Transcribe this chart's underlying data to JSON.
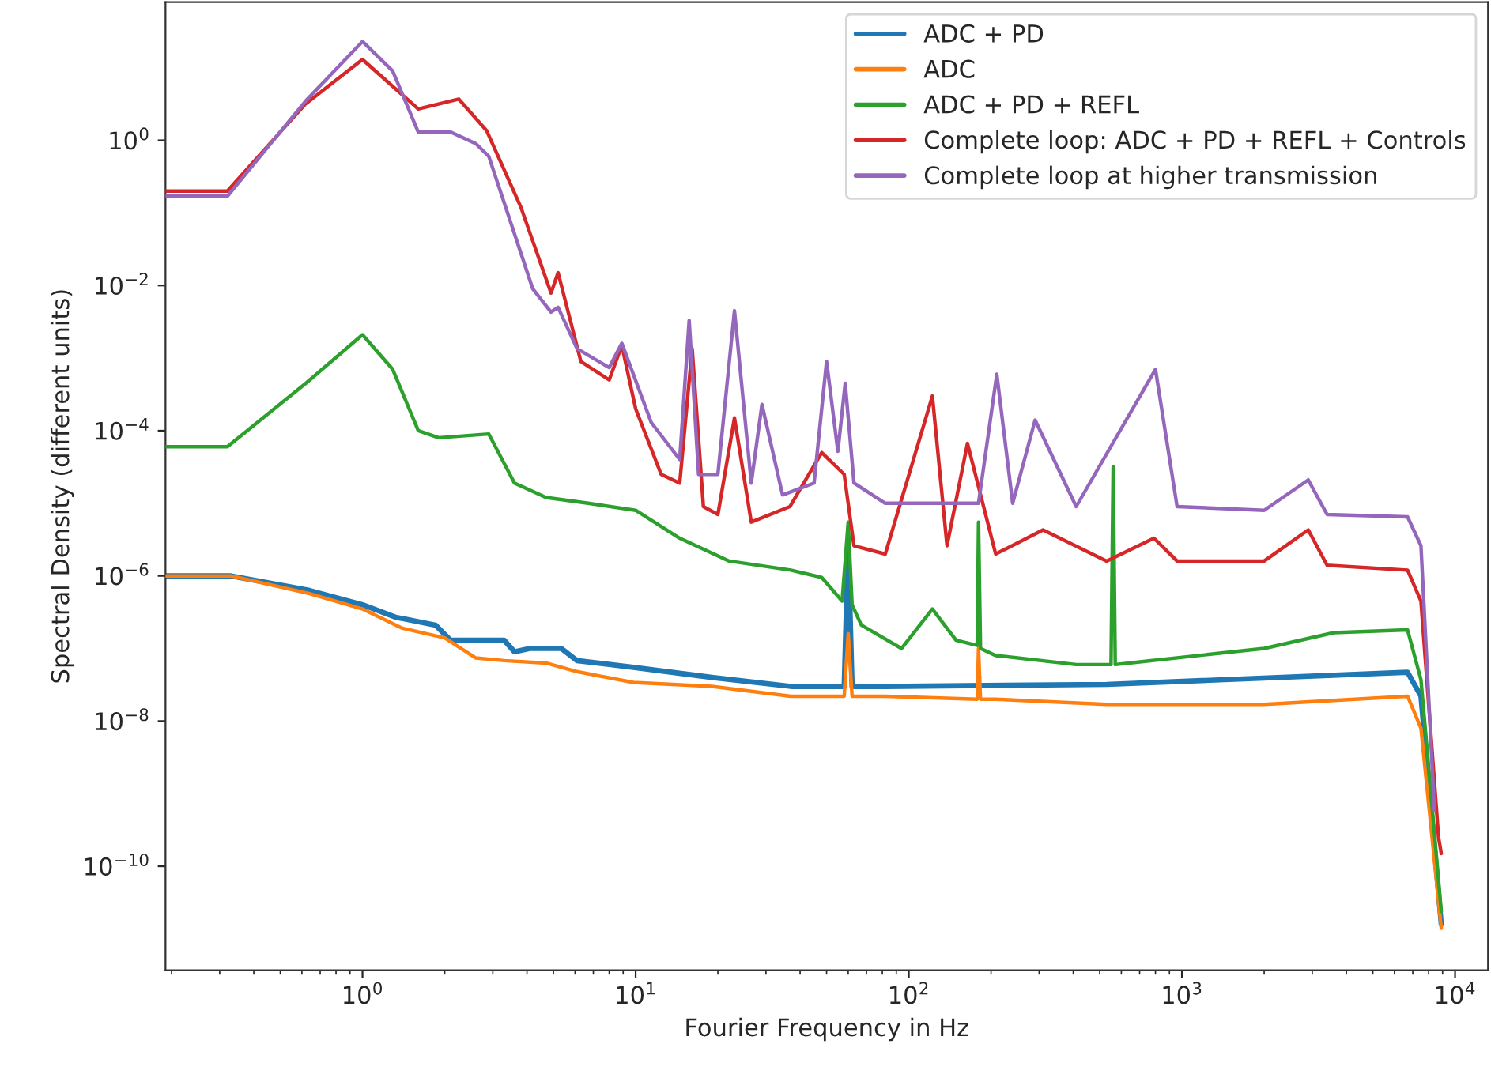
{
  "chart_data": {
    "type": "line",
    "xlabel": "Fourier Frequency in Hz",
    "ylabel": "Spectral Density (different units)",
    "log": "xy",
    "grid": false,
    "legend": "top right",
    "marker": "none",
    "line_style": "solid",
    "xlim": [
      0.19,
      13200
    ],
    "ylim": [
      3.7e-12,
      80
    ],
    "xticks": [
      {
        "value": 1,
        "label": "10$^{0}$"
      },
      {
        "value": 10,
        "label": "10$^{1}$"
      },
      {
        "value": 100,
        "label": "10$^{2}$"
      },
      {
        "value": 1000,
        "label": "10$^{3}$"
      },
      {
        "value": 10000,
        "label": "10$^{4}$"
      }
    ],
    "yticks": [
      {
        "value": 1e-10,
        "label": "10$^{−10}$"
      },
      {
        "value": 1e-08,
        "label": "10$^{−8}$"
      },
      {
        "value": 1e-06,
        "label": "10$^{−6}$"
      },
      {
        "value": 0.0001,
        "label": "10$^{−4}$"
      },
      {
        "value": 0.01,
        "label": "10$^{−2}$"
      },
      {
        "value": 1,
        "label": "10$^{0}$"
      }
    ],
    "series": [
      {
        "name": "ADC + PD",
        "color": "#1f77b4",
        "x": [
          0.19,
          0.33,
          0.64,
          1.0,
          1.32,
          1.85,
          2.1,
          3.3,
          3.6,
          4.1,
          5.35,
          6.1,
          9.8,
          19,
          37,
          58,
          60,
          62,
          82,
          530,
          6700,
          7500,
          8900
        ],
        "values": [
          1e-06,
          1e-06,
          6.3e-07,
          4e-07,
          2.7e-07,
          2.1e-07,
          1.3e-07,
          1.3e-07,
          9e-08,
          1e-07,
          1e-07,
          6.8e-08,
          5.5e-08,
          4e-08,
          3e-08,
          3e-08,
          2.7e-06,
          3e-08,
          3e-08,
          3.2e-08,
          4.7e-08,
          2.2e-08,
          1.6e-11
        ]
      },
      {
        "name": "ADC",
        "color": "#ff7f0e",
        "x": [
          0.19,
          0.33,
          0.64,
          1.0,
          1.4,
          2.0,
          2.6,
          3.3,
          4.7,
          6.1,
          9.8,
          19,
          37,
          58,
          60,
          62,
          82,
          178,
          180,
          183,
          208,
          530,
          2000,
          6700,
          7500,
          8900
        ],
        "values": [
          1e-06,
          1e-06,
          5.7e-07,
          3.5e-07,
          1.9e-07,
          1.4e-07,
          7.4e-08,
          6.8e-08,
          6.3e-08,
          4.8e-08,
          3.4e-08,
          3e-08,
          2.2e-08,
          2.2e-08,
          1.6e-07,
          2.2e-08,
          2.2e-08,
          2e-08,
          1e-07,
          2e-08,
          2e-08,
          1.7e-08,
          1.7e-08,
          2.2e-08,
          8e-09,
          1.4e-11
        ]
      },
      {
        "name": "ADC + PD + REFL",
        "color": "#2ca02c",
        "x": [
          0.19,
          0.32,
          0.62,
          1.0,
          1.29,
          1.6,
          1.9,
          2.9,
          3.6,
          4.7,
          6.7,
          10,
          14.5,
          22,
          37,
          48,
          57,
          60,
          62,
          67,
          94,
          122,
          149,
          178,
          180,
          183,
          208,
          410,
          550,
          560,
          570,
          690,
          2000,
          3600,
          6700,
          7500,
          8900
        ],
        "values": [
          6e-05,
          6e-05,
          0.00045,
          0.0021,
          0.0007,
          0.0001,
          8e-05,
          9e-05,
          1.9e-05,
          1.2e-05,
          1e-05,
          8e-06,
          3.3e-06,
          1.6e-06,
          1.2e-06,
          9.5e-07,
          4.5e-07,
          5.5e-06,
          4e-07,
          2.1e-07,
          1e-07,
          3.5e-07,
          1.3e-07,
          1.1e-07,
          5.5e-06,
          1e-07,
          8e-08,
          6e-08,
          6e-08,
          3.2e-05,
          6e-08,
          6.5e-08,
          1e-07,
          1.65e-07,
          1.8e-07,
          3.7e-08,
          2.4e-11
        ]
      },
      {
        "name": "Complete loop: ADC + PD + REFL + Controls",
        "color": "#d62728",
        "x": [
          0.19,
          0.32,
          0.62,
          1.0,
          1.6,
          2.25,
          2.85,
          3.8,
          4.9,
          5.2,
          6.3,
          8,
          8.9,
          10,
          12.4,
          14.5,
          16.1,
          17.7,
          20,
          23,
          26.5,
          36.7,
          48,
          58,
          63,
          82,
          122,
          138,
          164,
          208,
          310,
          530,
          790,
          960,
          2000,
          2900,
          3400,
          6700,
          7500,
          8700,
          8900
        ],
        "values": [
          0.2,
          0.2,
          3.2,
          13,
          2.7,
          3.7,
          1.35,
          0.12,
          0.0079,
          0.015,
          0.0009,
          0.0005,
          0.0015,
          0.0002,
          2.5e-05,
          1.9e-05,
          0.00135,
          9e-06,
          7e-06,
          0.00015,
          5.5e-06,
          9e-06,
          5e-05,
          2.5e-05,
          2.6e-06,
          2e-06,
          0.0003,
          2.6e-06,
          6.7e-05,
          2e-06,
          4.3e-06,
          1.6e-06,
          3.3e-06,
          1.6e-06,
          1.6e-06,
          4.3e-06,
          1.4e-06,
          1.2e-06,
          4.5e-07,
          2.5e-10,
          1.5e-10
        ]
      },
      {
        "name": "Complete loop at higher transmission",
        "color": "#9467bd",
        "x": [
          0.19,
          0.32,
          0.62,
          1.0,
          1.29,
          1.6,
          2.1,
          2.6,
          2.9,
          4.2,
          4.9,
          5.2,
          6.1,
          8,
          8.9,
          11.4,
          14.5,
          15.7,
          17,
          20,
          23,
          26.5,
          29,
          34.5,
          45,
          50,
          55,
          58.5,
          63,
          82,
          180,
          210,
          240,
          290,
          410,
          800,
          960,
          2000,
          2900,
          3400,
          6700,
          7500,
          8400
        ],
        "values": [
          0.17,
          0.17,
          3.5,
          23,
          9,
          1.3,
          1.3,
          0.9,
          0.6,
          0.009,
          0.0043,
          0.005,
          0.00135,
          0.00074,
          0.0016,
          0.00013,
          4e-05,
          0.0033,
          2.5e-05,
          2.5e-05,
          0.0045,
          1.9e-05,
          0.00023,
          1.3e-05,
          1.9e-05,
          0.0009,
          5.2e-05,
          0.00045,
          1.9e-05,
          1e-05,
          1e-05,
          0.0006,
          1e-05,
          0.00014,
          9e-06,
          0.0007,
          9e-06,
          8e-06,
          2.1e-05,
          7e-06,
          6.5e-06,
          2.6e-06,
          5.8e-10
        ]
      }
    ]
  }
}
